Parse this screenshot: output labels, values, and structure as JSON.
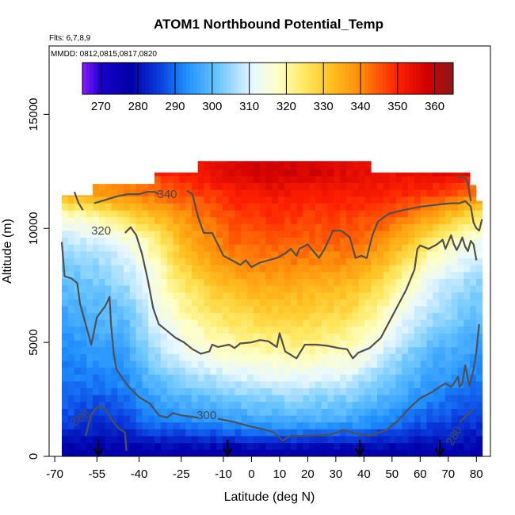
{
  "chart_data": {
    "type": "heatmap",
    "title": "ATOM1 Northbound Potential_Temp",
    "flights_note": "Flts: 6,7,8,9",
    "dates_note": "MMDD: 0812,0815,0817,0820",
    "xlabel": "Latitude (deg N)",
    "ylabel": "Altitude (m)",
    "xlim": [
      -72,
      85
    ],
    "ylim": [
      0,
      18000
    ],
    "x_ticks": [
      -70,
      -55,
      -40,
      -25,
      -10,
      0,
      10,
      20,
      30,
      40,
      50,
      60,
      70,
      80
    ],
    "x_tick_labels": [
      "-70",
      "-55",
      "-40",
      "-25",
      "-10",
      "0",
      "10",
      "20",
      "30",
      "40",
      "50",
      "60",
      "70",
      "80"
    ],
    "y_ticks": [
      0,
      5000,
      10000,
      15000
    ],
    "y_tick_labels": [
      "0",
      "5000",
      "10000",
      "15000"
    ],
    "colorbar": {
      "min": 265,
      "max": 365,
      "ticks": [
        270,
        280,
        290,
        300,
        310,
        320,
        330,
        340,
        350,
        360
      ],
      "tick_labels": [
        "270",
        "280",
        "290",
        "300",
        "310",
        "320",
        "330",
        "340",
        "350",
        "360"
      ]
    },
    "color_ramp": [
      [
        265,
        "#8b1aff"
      ],
      [
        270,
        "#1a00cc"
      ],
      [
        278,
        "#0000a8"
      ],
      [
        286,
        "#0a3fe0"
      ],
      [
        293,
        "#1f8fff"
      ],
      [
        302,
        "#6fc8ff"
      ],
      [
        311,
        "#e8f8ff"
      ],
      [
        318,
        "#ffffc4"
      ],
      [
        325,
        "#ffe860"
      ],
      [
        332,
        "#ffc020"
      ],
      [
        340,
        "#ff8c0a"
      ],
      [
        350,
        "#ff2000"
      ],
      [
        358,
        "#d00000"
      ],
      [
        365,
        "#8a1a1a"
      ]
    ],
    "field": {
      "x": [
        -67,
        -55,
        -45,
        -35,
        -25,
        -15,
        -5,
        5,
        15,
        25,
        35,
        45,
        55,
        65,
        72,
        80
      ],
      "y": [
        250,
        1500,
        3000,
        4500,
        6000,
        7500,
        8500,
        9500,
        10500,
        11500,
        12500
      ],
      "values": [
        [
          277,
          277,
          277,
          277,
          277,
          277,
          277,
          277,
          277,
          277,
          277,
          277,
          277,
          277,
          278,
          277
        ],
        [
          287,
          284,
          286,
          291,
          292,
          294,
          295,
          297,
          297,
          297,
          296,
          293,
          290,
          287,
          286,
          285
        ],
        [
          290,
          290,
          292,
          298,
          302,
          303,
          306,
          307,
          308,
          307,
          306,
          302,
          298,
          294,
          292,
          290
        ],
        [
          293,
          295,
          296,
          305,
          311,
          315,
          318,
          319,
          320,
          319,
          317,
          311,
          304,
          298,
          297,
          295
        ],
        [
          296,
          298,
          300,
          310,
          318,
          323,
          326,
          328,
          328,
          327,
          325,
          319,
          311,
          305,
          303,
          300
        ],
        [
          300,
          302,
          305,
          314,
          324,
          330,
          334,
          335,
          335,
          334,
          333,
          327,
          318,
          310,
          307,
          304
        ],
        [
          303,
          305,
          309,
          317,
          329,
          336,
          340,
          341,
          341,
          340,
          339,
          334,
          325,
          316,
          312,
          309
        ],
        [
          308,
          310,
          314,
          322,
          333,
          340,
          344,
          345,
          345,
          344,
          344,
          341,
          333,
          324,
          319,
          314
        ],
        [
          316,
          320,
          326,
          332,
          338,
          343,
          347,
          348,
          348,
          347,
          347,
          346,
          342,
          335,
          330,
          325
        ],
        [
          335,
          338,
          341,
          343,
          345,
          348,
          351,
          352,
          352,
          351,
          351,
          350,
          349,
          348,
          345,
          342
        ],
        [
          null,
          null,
          null,
          null,
          352,
          354,
          357,
          358,
          358,
          357,
          355,
          354,
          354,
          355,
          356,
          null
        ]
      ]
    },
    "contours": [
      {
        "level": 280,
        "label": "280",
        "label_at": [
          -61,
          1700
        ],
        "label_angle": -35,
        "points": [
          [
            -59,
            900
          ],
          [
            -57,
            1850
          ],
          [
            -54.5,
            2200
          ],
          [
            -52,
            2100
          ],
          [
            -50,
            1650
          ],
          [
            -47.5,
            1250
          ],
          [
            -45,
            1050
          ],
          [
            -44.5,
            250
          ]
        ]
      },
      {
        "level": 280,
        "label": "280",
        "label_at": [
          72,
          900
        ],
        "label_angle": -60,
        "points": [
          [
            74,
            1500
          ],
          [
            77,
            1850
          ],
          [
            79,
            2050
          ]
        ]
      },
      {
        "level": 300,
        "label": "300",
        "label_at": [
          -16,
          1800
        ],
        "label_angle": 0,
        "points": [
          [
            -67.5,
            9400
          ],
          [
            -66.5,
            7900
          ],
          [
            -64,
            7800
          ],
          [
            -62,
            7600
          ],
          [
            -61,
            6700
          ],
          [
            -59,
            5800
          ],
          [
            -57,
            4900
          ],
          [
            -56,
            5500
          ],
          [
            -55,
            6100
          ],
          [
            -52,
            6600
          ],
          [
            -50.5,
            7000
          ],
          [
            -50,
            5800
          ],
          [
            -49,
            4500
          ],
          [
            -48,
            3800
          ],
          [
            -44,
            3100
          ],
          [
            -40,
            2600
          ],
          [
            -36,
            2300
          ],
          [
            -33,
            1800
          ],
          [
            -30,
            1700
          ],
          [
            -28,
            1900
          ],
          [
            -25,
            1800
          ],
          [
            -22,
            1750
          ],
          [
            -19,
            1700
          ]
        ]
      },
      {
        "level": 300,
        "label": "",
        "label_at": null,
        "label_angle": 0,
        "points": [
          [
            -12,
            1650
          ],
          [
            -6,
            1500
          ],
          [
            0,
            1300
          ],
          [
            4,
            1200
          ],
          [
            8,
            1050
          ],
          [
            11,
            700
          ],
          [
            14,
            900
          ],
          [
            20,
            900
          ],
          [
            28,
            950
          ],
          [
            33,
            1150
          ],
          [
            37,
            1000
          ],
          [
            42,
            900
          ],
          [
            48,
            1150
          ],
          [
            52,
            1550
          ],
          [
            56,
            2100
          ],
          [
            60,
            2550
          ],
          [
            64,
            2800
          ],
          [
            67,
            3050
          ],
          [
            69,
            3200
          ],
          [
            71,
            3050
          ],
          [
            72,
            3200
          ],
          [
            73.5,
            3500
          ],
          [
            74,
            3050
          ],
          [
            75,
            3200
          ],
          [
            76,
            4000
          ],
          [
            77.5,
            3100
          ],
          [
            79,
            3800
          ],
          [
            80,
            4600
          ],
          [
            81,
            5800
          ]
        ]
      },
      {
        "level": 320,
        "label": "320",
        "label_at": [
          -53.5,
          9900
        ],
        "label_angle": 0,
        "points": [
          [
            -45,
            9800
          ],
          [
            -43,
            10050
          ],
          [
            -41,
            9700
          ],
          [
            -39,
            8900
          ],
          [
            -37,
            7800
          ],
          [
            -35,
            6500
          ],
          [
            -33,
            5800
          ],
          [
            -30,
            5500
          ],
          [
            -27,
            5200
          ],
          [
            -24,
            5000
          ],
          [
            -21,
            4700
          ],
          [
            -18,
            4500
          ],
          [
            -15,
            4600
          ],
          [
            -14,
            4900
          ],
          [
            -12,
            4800
          ],
          [
            -8,
            4900
          ],
          [
            -6,
            4750
          ],
          [
            -4,
            4950
          ],
          [
            0,
            5000
          ],
          [
            3,
            5100
          ],
          [
            6,
            5050
          ],
          [
            9,
            4800
          ],
          [
            10,
            5400
          ],
          [
            12,
            4600
          ],
          [
            16,
            4300
          ],
          [
            19,
            4900
          ],
          [
            23,
            4900
          ],
          [
            27,
            4850
          ],
          [
            31,
            4750
          ],
          [
            34,
            4700
          ],
          [
            36,
            4300
          ],
          [
            38,
            4550
          ],
          [
            42,
            4750
          ],
          [
            46,
            5200
          ],
          [
            49,
            5900
          ],
          [
            52,
            6600
          ],
          [
            55,
            7300
          ],
          [
            58,
            8200
          ],
          [
            59,
            9100
          ],
          [
            60,
            9250
          ],
          [
            63,
            9100
          ],
          [
            66,
            9300
          ],
          [
            68,
            9500
          ],
          [
            69,
            9100
          ],
          [
            70,
            9400
          ],
          [
            71,
            9700
          ],
          [
            72,
            9300
          ],
          [
            73,
            9050
          ],
          [
            74,
            9300
          ],
          [
            75,
            9600
          ],
          [
            76,
            9200
          ],
          [
            77,
            9000
          ],
          [
            78,
            9450
          ],
          [
            79,
            9300
          ],
          [
            80,
            8600
          ]
        ]
      },
      {
        "level": 340,
        "label": "340",
        "label_at": [
          -30,
          11500
        ],
        "label_angle": 0,
        "points": [
          [
            -56,
            11100
          ],
          [
            -52,
            11250
          ],
          [
            -48,
            11400
          ],
          [
            -44,
            11500
          ],
          [
            -40,
            11500
          ],
          [
            -37,
            11600
          ],
          [
            -34.5,
            11600
          ],
          [
            -33,
            11500
          ]
        ]
      },
      {
        "level": 340,
        "label": "",
        "label_at": null,
        "label_angle": 0,
        "points": [
          [
            -23,
            11650
          ],
          [
            -21,
            11500
          ],
          [
            -19,
            10500
          ],
          [
            -17,
            9800
          ],
          [
            -14,
            9800
          ],
          [
            -12,
            9300
          ],
          [
            -10,
            8800
          ],
          [
            -7,
            8600
          ],
          [
            -4,
            8400
          ],
          [
            -2,
            8600
          ],
          [
            0,
            8300
          ],
          [
            3,
            8500
          ],
          [
            6,
            8600
          ],
          [
            9,
            8700
          ],
          [
            12,
            8900
          ],
          [
            14,
            9100
          ],
          [
            16,
            8800
          ],
          [
            17,
            9100
          ],
          [
            20,
            9300
          ],
          [
            24,
            8700
          ],
          [
            26,
            9100
          ],
          [
            29,
            9900
          ],
          [
            32,
            9900
          ],
          [
            35,
            9600
          ],
          [
            37,
            8700
          ],
          [
            39,
            8800
          ],
          [
            41,
            8700
          ],
          [
            43,
            9700
          ],
          [
            45,
            10300
          ],
          [
            49,
            10650
          ],
          [
            54,
            10800
          ],
          [
            60,
            10950
          ],
          [
            67,
            11050
          ],
          [
            71,
            11100
          ],
          [
            74,
            11100
          ],
          [
            76,
            11200
          ],
          [
            78,
            10950
          ],
          [
            79,
            10250
          ],
          [
            80,
            10000
          ],
          [
            81,
            9900
          ],
          [
            82,
            10400
          ]
        ]
      },
      {
        "level": 340,
        "label": "",
        "label_at": null,
        "label_angle": 0,
        "points": [
          [
            73,
            12300
          ],
          [
            76,
            12200
          ],
          [
            77,
            12000
          ],
          [
            78,
            11200
          ]
        ]
      },
      {
        "level": 320,
        "label": "",
        "label_at": null,
        "label_angle": 0,
        "points": [
          [
            -63,
            11600
          ],
          [
            -61.5,
            11100
          ],
          [
            -60,
            10800
          ]
        ]
      }
    ],
    "arrows": [
      {
        "latitude": -54.5,
        "label": ""
      },
      {
        "latitude": -8.5,
        "label": ""
      },
      {
        "latitude": 38.5,
        "label": ""
      },
      {
        "latitude": 67,
        "label": ""
      }
    ]
  }
}
